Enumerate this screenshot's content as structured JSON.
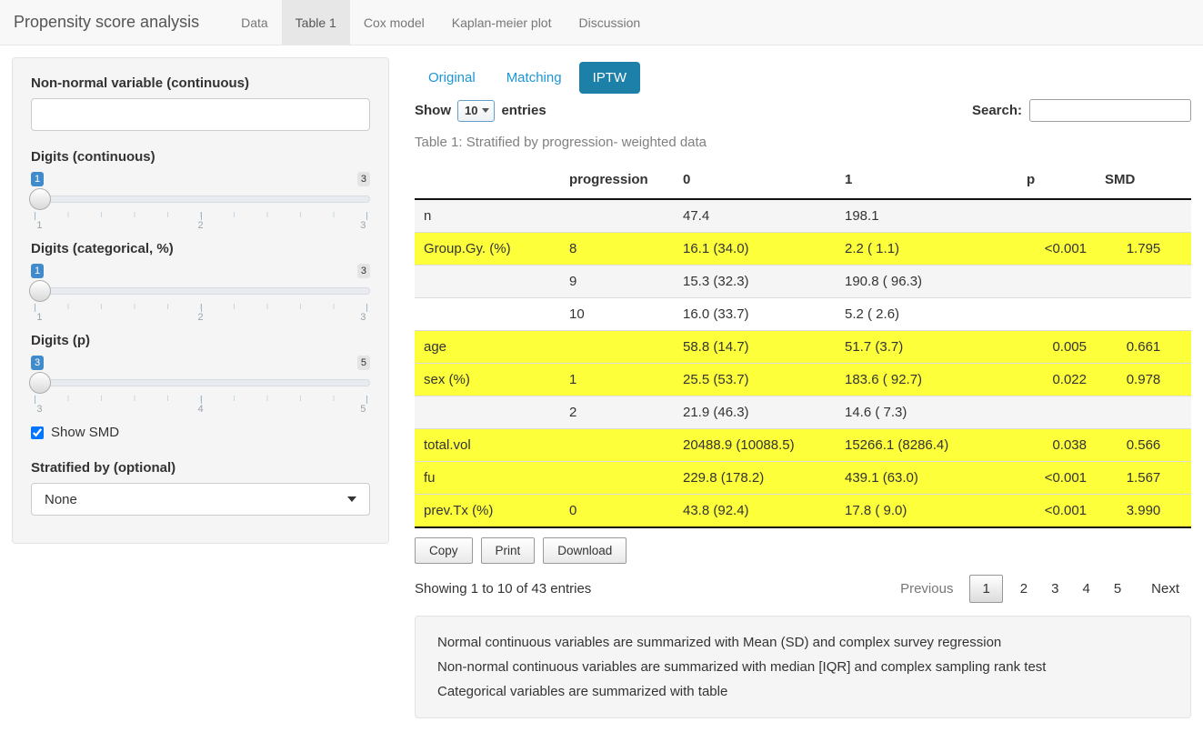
{
  "navbar": {
    "brand": "Propensity score analysis",
    "tabs": [
      {
        "label": "Data",
        "active": false
      },
      {
        "label": "Table 1",
        "active": true
      },
      {
        "label": "Cox model",
        "active": false
      },
      {
        "label": "Kaplan-meier plot",
        "active": false
      },
      {
        "label": "Discussion",
        "active": false
      }
    ]
  },
  "sidebar": {
    "nonnormal": {
      "label": "Non-normal variable (continuous)",
      "value": "",
      "placeholder": ""
    },
    "sliders": [
      {
        "label": "Digits (continuous)",
        "value": "1",
        "max_label": "3",
        "ticks": [
          "1",
          "2",
          "3"
        ]
      },
      {
        "label": "Digits (categorical, %)",
        "value": "1",
        "max_label": "3",
        "ticks": [
          "1",
          "2",
          "3"
        ]
      },
      {
        "label": "Digits (p)",
        "value": "3",
        "max_label": "5",
        "ticks": [
          "3",
          "4",
          "5"
        ]
      }
    ],
    "show_smd": {
      "label": "Show SMD",
      "checked": true
    },
    "stratified": {
      "label": "Stratified by (optional)",
      "selected": "None"
    }
  },
  "main": {
    "pills": [
      {
        "label": "Original",
        "active": false
      },
      {
        "label": "Matching",
        "active": false
      },
      {
        "label": "IPTW",
        "active": true
      }
    ],
    "length_control": {
      "prefix": "Show",
      "selected": "10",
      "suffix": "entries"
    },
    "search": {
      "label": "Search:",
      "value": ""
    },
    "caption": "Table 1: Stratified by progression- weighted data",
    "table": {
      "headers": [
        "",
        "progression",
        "0",
        "1",
        "p",
        "SMD"
      ],
      "rows": [
        {
          "cells": [
            "n",
            "",
            "47.4",
            "198.1",
            "",
            ""
          ],
          "highlight": false,
          "stripe": true
        },
        {
          "cells": [
            "Group.Gy. (%)",
            "8",
            "16.1 (34.0)",
            "2.2 ( 1.1)",
            "<0.001",
            "1.795"
          ],
          "highlight": true,
          "stripe": false
        },
        {
          "cells": [
            "",
            "9",
            "15.3 (32.3)",
            "190.8 ( 96.3)",
            "",
            ""
          ],
          "highlight": false,
          "stripe": true
        },
        {
          "cells": [
            "",
            "10",
            "16.0 (33.7)",
            "5.2 ( 2.6)",
            "",
            ""
          ],
          "highlight": false,
          "stripe": false
        },
        {
          "cells": [
            "age",
            "",
            "58.8 (14.7)",
            "51.7 (3.7)",
            "0.005",
            "0.661"
          ],
          "highlight": true,
          "stripe": false
        },
        {
          "cells": [
            "sex (%)",
            "1",
            "25.5 (53.7)",
            "183.6 ( 92.7)",
            "0.022",
            "0.978"
          ],
          "highlight": true,
          "stripe": false
        },
        {
          "cells": [
            "",
            "2",
            "21.9 (46.3)",
            "14.6 ( 7.3)",
            "",
            ""
          ],
          "highlight": false,
          "stripe": true
        },
        {
          "cells": [
            "total.vol",
            "",
            "20488.9 (10088.5)",
            "15266.1 (8286.4)",
            "0.038",
            "0.566"
          ],
          "highlight": true,
          "stripe": false
        },
        {
          "cells": [
            "fu",
            "",
            "229.8 (178.2)",
            "439.1 (63.0)",
            "<0.001",
            "1.567"
          ],
          "highlight": true,
          "stripe": false
        },
        {
          "cells": [
            "prev.Tx (%)",
            "0",
            "43.8 (92.4)",
            "17.8 ( 9.0)",
            "<0.001",
            "3.990"
          ],
          "highlight": true,
          "stripe": false
        }
      ]
    },
    "buttons": {
      "copy": "Copy",
      "print": "Print",
      "download": "Download"
    },
    "info": "Showing 1 to 10 of 43 entries",
    "pagination": {
      "previous": "Previous",
      "pages": [
        "1",
        "2",
        "3",
        "4",
        "5"
      ],
      "current_page": "1",
      "next": "Next"
    },
    "notes": [
      "Normal continuous variables are summarized with Mean (SD) and complex survey regression",
      "Non-normal continuous variables are summarized with median [IQR] and complex sampling rank test",
      "Categorical variables are summarized with table"
    ]
  },
  "colors": {
    "accent_pill": "#1d80a8",
    "link_blue": "#1e95d4",
    "highlight_yellow": "#fdff3a",
    "slider_badge_blue": "#428bca"
  }
}
